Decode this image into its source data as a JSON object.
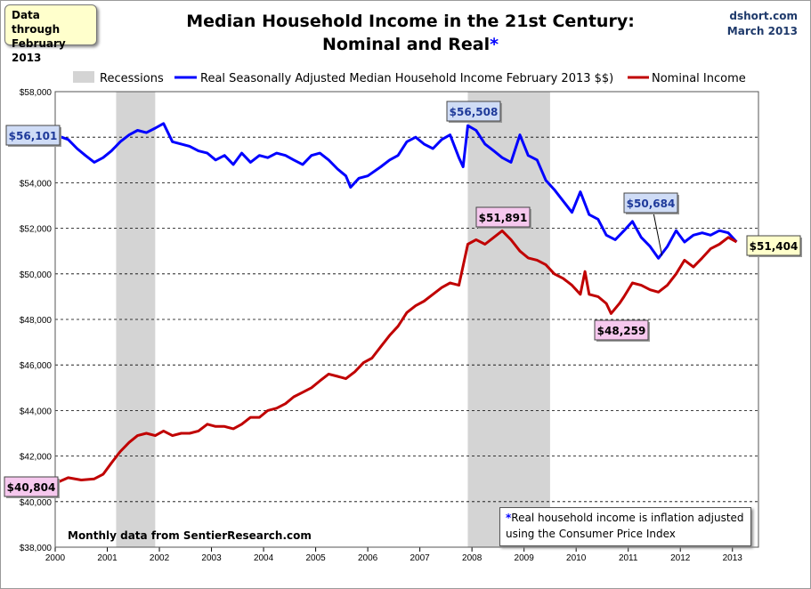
{
  "header": {
    "note_line1": "Data through",
    "note_line2": "February 2013",
    "title_line1": "Median Household Income in the 21st Century:",
    "title_line2": "Nominal and Real",
    "title_asterisk": "*",
    "source_line1": "dshort.com",
    "source_line2": "March 2013"
  },
  "footer": {
    "data_source": "Monthly data from SentierResearch.com",
    "cpi_asterisk": "*",
    "cpi_line1": "Real household  income is inflation adjusted",
    "cpi_line2": "using  the Consumer Price Index"
  },
  "colors": {
    "real": "#0000ff",
    "nominal": "#c00000",
    "recession": "#d4d4d4",
    "callout_real_fill": "#cfdcf6",
    "callout_nominal_fill": "#f6c8ee",
    "callout_latest_fill": "#ffffcc"
  },
  "chart_data": {
    "type": "line",
    "title": "Median Household Income in the 21st Century: Nominal and Real*",
    "xlabel": "",
    "ylabel": "",
    "xlim": [
      2000.0,
      2013.5
    ],
    "ylim": [
      38000,
      58000
    ],
    "ytick_step": 2000,
    "grid": "horizontal dashed",
    "legend": [
      "Recessions",
      "Real Seasonally Adjusted Median Household Income February 2013 $$)",
      "Nominal Income"
    ],
    "legend_position": "top",
    "x_ticks": [
      "2000",
      "2001",
      "2002",
      "2003",
      "2004",
      "2005",
      "2006",
      "2007",
      "2008",
      "2009",
      "2010",
      "2011",
      "2012",
      "2013"
    ],
    "y_ticks": [
      "$38,000",
      "$40,000",
      "$42,000",
      "$44,000",
      "$46,000",
      "$48,000",
      "$50,000",
      "$52,000",
      "$54,000",
      "$56,000",
      "$58,000"
    ],
    "recessions": [
      {
        "start": 2001.17,
        "end": 2001.92
      },
      {
        "start": 2007.92,
        "end": 2009.5
      }
    ],
    "series": [
      {
        "name": "Real Seasonally Adjusted Median Household Income February 2013 $$)",
        "points": [
          [
            2000.0,
            56101
          ],
          [
            2000.25,
            55900
          ],
          [
            2000.42,
            55500
          ],
          [
            2000.58,
            55200
          ],
          [
            2000.75,
            54900
          ],
          [
            2000.92,
            55100
          ],
          [
            2001.08,
            55400
          ],
          [
            2001.25,
            55800
          ],
          [
            2001.42,
            56100
          ],
          [
            2001.58,
            56300
          ],
          [
            2001.75,
            56200
          ],
          [
            2001.92,
            56400
          ],
          [
            2002.08,
            56600
          ],
          [
            2002.25,
            55800
          ],
          [
            2002.42,
            55700
          ],
          [
            2002.58,
            55600
          ],
          [
            2002.75,
            55400
          ],
          [
            2002.92,
            55300
          ],
          [
            2003.08,
            55000
          ],
          [
            2003.25,
            55200
          ],
          [
            2003.42,
            54800
          ],
          [
            2003.58,
            55300
          ],
          [
            2003.75,
            54900
          ],
          [
            2003.92,
            55200
          ],
          [
            2004.08,
            55100
          ],
          [
            2004.25,
            55300
          ],
          [
            2004.42,
            55200
          ],
          [
            2004.58,
            55000
          ],
          [
            2004.75,
            54800
          ],
          [
            2004.92,
            55200
          ],
          [
            2005.08,
            55300
          ],
          [
            2005.25,
            55000
          ],
          [
            2005.42,
            54600
          ],
          [
            2005.58,
            54300
          ],
          [
            2005.67,
            53800
          ],
          [
            2005.83,
            54200
          ],
          [
            2006.0,
            54300
          ],
          [
            2006.25,
            54700
          ],
          [
            2006.42,
            55000
          ],
          [
            2006.58,
            55200
          ],
          [
            2006.75,
            55800
          ],
          [
            2006.92,
            56000
          ],
          [
            2007.08,
            55700
          ],
          [
            2007.25,
            55500
          ],
          [
            2007.42,
            55900
          ],
          [
            2007.58,
            56100
          ],
          [
            2007.75,
            55100
          ],
          [
            2007.83,
            54700
          ],
          [
            2007.92,
            56508
          ],
          [
            2008.08,
            56300
          ],
          [
            2008.25,
            55700
          ],
          [
            2008.42,
            55400
          ],
          [
            2008.58,
            55100
          ],
          [
            2008.75,
            54900
          ],
          [
            2008.92,
            56100
          ],
          [
            2009.08,
            55200
          ],
          [
            2009.25,
            55000
          ],
          [
            2009.42,
            54100
          ],
          [
            2009.58,
            53700
          ],
          [
            2009.75,
            53200
          ],
          [
            2009.92,
            52700
          ],
          [
            2010.08,
            53600
          ],
          [
            2010.25,
            52600
          ],
          [
            2010.42,
            52400
          ],
          [
            2010.58,
            51700
          ],
          [
            2010.75,
            51500
          ],
          [
            2010.92,
            51900
          ],
          [
            2011.08,
            52300
          ],
          [
            2011.25,
            51600
          ],
          [
            2011.42,
            51200
          ],
          [
            2011.58,
            50684
          ],
          [
            2011.75,
            51200
          ],
          [
            2011.92,
            51900
          ],
          [
            2012.08,
            51400
          ],
          [
            2012.25,
            51700
          ],
          [
            2012.42,
            51800
          ],
          [
            2012.58,
            51700
          ],
          [
            2012.75,
            51900
          ],
          [
            2012.92,
            51800
          ],
          [
            2013.08,
            51404
          ]
        ]
      },
      {
        "name": "Nominal Income",
        "points": [
          [
            2000.0,
            40804
          ],
          [
            2000.25,
            41050
          ],
          [
            2000.5,
            40950
          ],
          [
            2000.75,
            41000
          ],
          [
            2000.92,
            41200
          ],
          [
            2001.08,
            41700
          ],
          [
            2001.25,
            42200
          ],
          [
            2001.42,
            42600
          ],
          [
            2001.58,
            42900
          ],
          [
            2001.75,
            43000
          ],
          [
            2001.92,
            42900
          ],
          [
            2002.08,
            43100
          ],
          [
            2002.25,
            42900
          ],
          [
            2002.42,
            43000
          ],
          [
            2002.58,
            43000
          ],
          [
            2002.75,
            43100
          ],
          [
            2002.92,
            43400
          ],
          [
            2003.08,
            43300
          ],
          [
            2003.25,
            43300
          ],
          [
            2003.42,
            43200
          ],
          [
            2003.58,
            43400
          ],
          [
            2003.75,
            43700
          ],
          [
            2003.92,
            43700
          ],
          [
            2004.08,
            44000
          ],
          [
            2004.25,
            44100
          ],
          [
            2004.42,
            44300
          ],
          [
            2004.58,
            44600
          ],
          [
            2004.75,
            44800
          ],
          [
            2004.92,
            45000
          ],
          [
            2005.08,
            45300
          ],
          [
            2005.25,
            45600
          ],
          [
            2005.42,
            45500
          ],
          [
            2005.58,
            45400
          ],
          [
            2005.75,
            45700
          ],
          [
            2005.92,
            46100
          ],
          [
            2006.08,
            46300
          ],
          [
            2006.25,
            46800
          ],
          [
            2006.42,
            47300
          ],
          [
            2006.58,
            47700
          ],
          [
            2006.75,
            48300
          ],
          [
            2006.92,
            48600
          ],
          [
            2007.08,
            48800
          ],
          [
            2007.25,
            49100
          ],
          [
            2007.42,
            49400
          ],
          [
            2007.58,
            49600
          ],
          [
            2007.75,
            49500
          ],
          [
            2007.92,
            51300
          ],
          [
            2008.08,
            51500
          ],
          [
            2008.25,
            51300
          ],
          [
            2008.42,
            51600
          ],
          [
            2008.58,
            51891
          ],
          [
            2008.75,
            51500
          ],
          [
            2008.92,
            51000
          ],
          [
            2009.08,
            50700
          ],
          [
            2009.25,
            50600
          ],
          [
            2009.42,
            50400
          ],
          [
            2009.58,
            50000
          ],
          [
            2009.75,
            49800
          ],
          [
            2009.92,
            49500
          ],
          [
            2010.08,
            49100
          ],
          [
            2010.17,
            50100
          ],
          [
            2010.25,
            49100
          ],
          [
            2010.42,
            49000
          ],
          [
            2010.58,
            48700
          ],
          [
            2010.67,
            48259
          ],
          [
            2010.83,
            48700
          ],
          [
            2010.92,
            49000
          ],
          [
            2011.08,
            49600
          ],
          [
            2011.25,
            49500
          ],
          [
            2011.42,
            49300
          ],
          [
            2011.58,
            49200
          ],
          [
            2011.75,
            49500
          ],
          [
            2011.92,
            50000
          ],
          [
            2012.08,
            50600
          ],
          [
            2012.25,
            50300
          ],
          [
            2012.42,
            50700
          ],
          [
            2012.58,
            51100
          ],
          [
            2012.75,
            51300
          ],
          [
            2012.92,
            51600
          ],
          [
            2013.08,
            51404
          ]
        ]
      }
    ],
    "callouts": [
      {
        "label": "$56,101",
        "series": "real",
        "x": 2000.0,
        "y": 56101
      },
      {
        "label": "$56,508",
        "series": "real",
        "x": 2007.92,
        "y": 56508
      },
      {
        "label": "$50,684",
        "series": "real",
        "x": 2011.58,
        "y": 50684
      },
      {
        "label": "$51,891",
        "series": "nominal",
        "x": 2008.58,
        "y": 51891
      },
      {
        "label": "$48,259",
        "series": "nominal",
        "x": 2010.67,
        "y": 48259
      },
      {
        "label": "$40,804",
        "series": "nominal",
        "x": 2000.0,
        "y": 40804
      },
      {
        "label": "$51,404",
        "series": "latest",
        "x": 2013.08,
        "y": 51404
      }
    ]
  }
}
